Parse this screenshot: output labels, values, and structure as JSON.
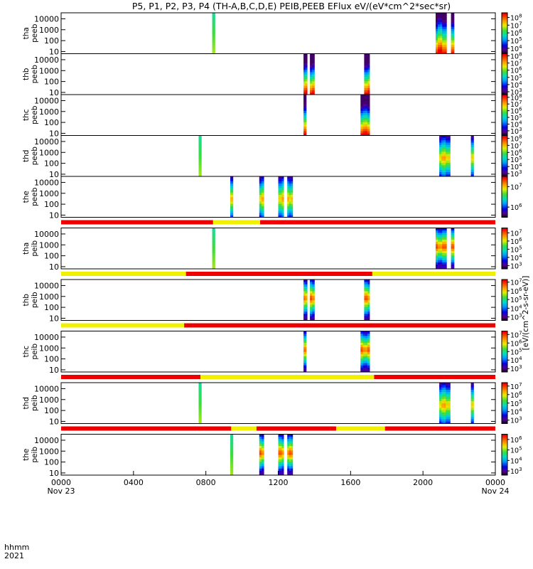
{
  "chart_data": {
    "type": "heatmap",
    "title": "P5, P1, P2, P3, P4 (TH-A,B,C,D,E) PEIB,PEEB EFlux eV/(eV*cm^2*sec*sr)",
    "x_axis": {
      "row_label_1": "hhmm",
      "row_label_2": "2021",
      "range_hours": [
        0,
        24
      ],
      "ticks": [
        {
          "v": 0,
          "label": "0000",
          "sub": "Nov 23"
        },
        {
          "v": 4,
          "label": "0400",
          "sub": ""
        },
        {
          "v": 8,
          "label": "0800",
          "sub": ""
        },
        {
          "v": 12,
          "label": "1200",
          "sub": ""
        },
        {
          "v": 16,
          "label": "1600",
          "sub": ""
        },
        {
          "v": 20,
          "label": "2000",
          "sub": ""
        },
        {
          "v": 24,
          "label": "0000",
          "sub": "Nov 24"
        }
      ]
    },
    "y_ticks": [
      "10000",
      "1000",
      "100",
      "10"
    ],
    "colorbar_label": "[eV/(cm^2-s-sr-eV)]",
    "panels": [
      {
        "name": "tha peeb",
        "lines": [
          "tha",
          "peeb"
        ],
        "cb_min": 3.3,
        "cb_max": 8.6,
        "cb_ticks": [
          {
            "l": "10",
            "e": "8"
          },
          {
            "l": "10",
            "e": "7"
          },
          {
            "l": "10",
            "e": "6"
          },
          {
            "l": "10",
            "e": "5"
          },
          {
            "l": "10",
            "e": "4"
          }
        ],
        "segments": [
          {
            "t0": 8.35,
            "t1": 8.5,
            "p": "flat"
          },
          {
            "t0": 20.7,
            "t1": 21.3,
            "p": "wide"
          },
          {
            "t0": 21.55,
            "t1": 21.72,
            "p": "wide"
          }
        ]
      },
      {
        "name": "thb peeb",
        "lines": [
          "thb",
          "peeb"
        ],
        "cb_min": 2.6,
        "cb_max": 8.3,
        "cb_ticks": [
          {
            "l": "10",
            "e": "8"
          },
          {
            "l": "10",
            "e": "7"
          },
          {
            "l": "10",
            "e": "6"
          },
          {
            "l": "10",
            "e": "5"
          },
          {
            "l": "10",
            "e": "4"
          },
          {
            "l": "10",
            "e": "3"
          }
        ],
        "segments": [
          {
            "t0": 13.4,
            "t1": 13.6,
            "p": "low"
          },
          {
            "t0": 13.75,
            "t1": 14.0,
            "p": "low"
          },
          {
            "t0": 16.75,
            "t1": 17.05,
            "p": "low"
          }
        ]
      },
      {
        "name": "thc peeb",
        "lines": [
          "thc",
          "peeb"
        ],
        "cb_min": 2.3,
        "cb_max": 8.4,
        "cb_ticks": [
          {
            "l": "10",
            "e": "8"
          },
          {
            "l": "10",
            "e": "7"
          },
          {
            "l": "10",
            "e": "6"
          },
          {
            "l": "10",
            "e": "5"
          },
          {
            "l": "10",
            "e": "4"
          },
          {
            "l": "10",
            "e": "3"
          }
        ],
        "segments": [
          {
            "t0": 13.4,
            "t1": 13.55,
            "p": "low"
          },
          {
            "t0": 16.55,
            "t1": 17.05,
            "p": "low"
          }
        ]
      },
      {
        "name": "thd peeb",
        "lines": [
          "thd",
          "peeb"
        ],
        "cb_min": 2.6,
        "cb_max": 8.4,
        "cb_ticks": [
          {
            "l": "10",
            "e": "8"
          },
          {
            "l": "10",
            "e": "7"
          },
          {
            "l": "10",
            "e": "6"
          },
          {
            "l": "10",
            "e": "5"
          },
          {
            "l": "10",
            "e": "4"
          },
          {
            "l": "10",
            "e": "3"
          }
        ],
        "segments": [
          {
            "t0": 7.6,
            "t1": 7.75,
            "p": "flat"
          },
          {
            "t0": 20.9,
            "t1": 21.5,
            "p": "mid"
          },
          {
            "t0": 22.65,
            "t1": 22.8,
            "p": "mid"
          }
        ]
      },
      {
        "name": "the peeb",
        "lines": [
          "the",
          "peeb"
        ],
        "cb_min": 5.5,
        "cb_max": 7.5,
        "cb_ticks": [
          {
            "l": "10",
            "e": "7"
          },
          {
            "l": "10",
            "e": "6"
          }
        ],
        "segments": [
          {
            "t0": 9.35,
            "t1": 9.5,
            "p": "mid"
          },
          {
            "t0": 10.95,
            "t1": 11.2,
            "p": "mid"
          },
          {
            "t0": 12.0,
            "t1": 12.3,
            "p": "mid"
          },
          {
            "t0": 12.5,
            "t1": 12.8,
            "p": "mid"
          }
        ]
      },
      {
        "name": "tha peib",
        "lines": [
          "tha",
          "peib"
        ],
        "cb_min": 2.6,
        "cb_max": 7.6,
        "cb_ticks": [
          {
            "l": "10",
            "e": "7"
          },
          {
            "l": "10",
            "e": "6"
          },
          {
            "l": "10",
            "e": "5"
          },
          {
            "l": "10",
            "e": "4"
          },
          {
            "l": "10",
            "e": "3"
          }
        ],
        "segments": [
          {
            "t0": 8.35,
            "t1": 8.5,
            "p": "flat"
          },
          {
            "t0": 20.7,
            "t1": 21.3,
            "p": "ion"
          },
          {
            "t0": 21.55,
            "t1": 21.72,
            "p": "ion"
          }
        ]
      },
      {
        "name": "thb peib",
        "lines": [
          "thb",
          "peib"
        ],
        "cb_min": 2.6,
        "cb_max": 7.3,
        "cb_ticks": [
          {
            "l": "10",
            "e": "7"
          },
          {
            "l": "10",
            "e": "6"
          },
          {
            "l": "10",
            "e": "5"
          },
          {
            "l": "10",
            "e": "4"
          },
          {
            "l": "10",
            "e": "3"
          }
        ],
        "segments": [
          {
            "t0": 13.4,
            "t1": 13.6,
            "p": "ion"
          },
          {
            "t0": 13.75,
            "t1": 14.0,
            "p": "ion"
          },
          {
            "t0": 16.75,
            "t1": 17.05,
            "p": "ion"
          }
        ]
      },
      {
        "name": "thc peib",
        "lines": [
          "thc",
          "peib"
        ],
        "cb_min": 2.6,
        "cb_max": 7.4,
        "cb_ticks": [
          {
            "l": "10",
            "e": "7"
          },
          {
            "l": "10",
            "e": "6"
          },
          {
            "l": "10",
            "e": "5"
          },
          {
            "l": "10",
            "e": "4"
          },
          {
            "l": "10",
            "e": "3"
          }
        ],
        "segments": [
          {
            "t0": 13.4,
            "t1": 13.55,
            "p": "ion"
          },
          {
            "t0": 16.55,
            "t1": 17.05,
            "p": "ion"
          }
        ]
      },
      {
        "name": "thd peib",
        "lines": [
          "thd",
          "peib"
        ],
        "cb_min": 2.6,
        "cb_max": 7.4,
        "cb_ticks": [
          {
            "l": "10",
            "e": "7"
          },
          {
            "l": "10",
            "e": "6"
          },
          {
            "l": "10",
            "e": "5"
          },
          {
            "l": "10",
            "e": "4"
          },
          {
            "l": "10",
            "e": "3"
          }
        ],
        "segments": [
          {
            "t0": 7.6,
            "t1": 7.75,
            "p": "flat"
          },
          {
            "t0": 20.9,
            "t1": 21.5,
            "p": "mid"
          },
          {
            "t0": 22.65,
            "t1": 22.8,
            "p": "mid"
          }
        ]
      },
      {
        "name": "the peib",
        "lines": [
          "the",
          "peib"
        ],
        "cb_min": 2.6,
        "cb_max": 6.5,
        "cb_ticks": [
          {
            "l": "10",
            "e": "6"
          },
          {
            "l": "10",
            "e": "5"
          },
          {
            "l": "10",
            "e": "4"
          },
          {
            "l": "10",
            "e": "3"
          }
        ],
        "segments": [
          {
            "t0": 9.35,
            "t1": 9.5,
            "p": "flat"
          },
          {
            "t0": 10.95,
            "t1": 11.2,
            "p": "ion"
          },
          {
            "t0": 12.0,
            "t1": 12.3,
            "p": "ion"
          },
          {
            "t0": 12.5,
            "t1": 12.8,
            "p": "ion"
          }
        ]
      }
    ],
    "mode_bars": [
      {
        "after_panel": 4,
        "segments": [
          {
            "t0": 0,
            "t1": 8.4,
            "c": "r"
          },
          {
            "t0": 8.4,
            "t1": 11.0,
            "c": "y"
          },
          {
            "t0": 11.0,
            "t1": 24,
            "c": "r"
          }
        ]
      },
      {
        "after_panel": 5,
        "segments": [
          {
            "t0": 0,
            "t1": 6.9,
            "c": "y"
          },
          {
            "t0": 6.9,
            "t1": 17.2,
            "c": "r"
          },
          {
            "t0": 17.2,
            "t1": 24,
            "c": "y"
          }
        ]
      },
      {
        "after_panel": 6,
        "segments": [
          {
            "t0": 0,
            "t1": 6.8,
            "c": "y"
          },
          {
            "t0": 6.8,
            "t1": 24,
            "c": "r"
          }
        ]
      },
      {
        "after_panel": 7,
        "segments": [
          {
            "t0": 0,
            "t1": 7.7,
            "c": "r"
          },
          {
            "t0": 7.7,
            "t1": 17.3,
            "c": "y"
          },
          {
            "t0": 17.3,
            "t1": 24,
            "c": "r"
          }
        ]
      },
      {
        "after_panel": 8,
        "segments": [
          {
            "t0": 0,
            "t1": 9.4,
            "c": "r"
          },
          {
            "t0": 9.4,
            "t1": 10.8,
            "c": "y"
          },
          {
            "t0": 10.8,
            "t1": 15.2,
            "c": "r"
          },
          {
            "t0": 15.2,
            "t1": 17.9,
            "c": "y"
          },
          {
            "t0": 17.9,
            "t1": 24,
            "c": "r"
          }
        ]
      }
    ]
  }
}
